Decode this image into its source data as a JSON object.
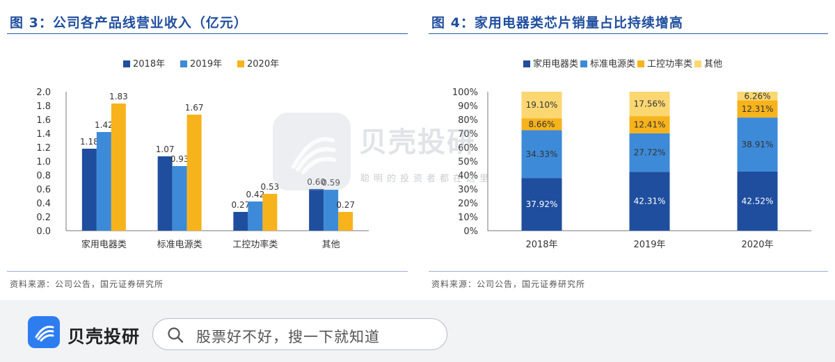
{
  "left": {
    "title": "图 3：公司各产品线营业收入（亿元）",
    "source": "资料来源：公司公告，国元证券研究所",
    "chart_data": {
      "type": "bar",
      "categories": [
        "家用电器类",
        "标准电源类",
        "工控功率类",
        "其他"
      ],
      "series": [
        {
          "name": "2018年",
          "color": "#1f4e9e",
          "values": [
            1.18,
            1.07,
            0.27,
            0.6
          ],
          "labels": [
            "1.18",
            "1.07",
            "0.27",
            "0.60"
          ]
        },
        {
          "name": "2019年",
          "color": "#3d8ad8",
          "values": [
            1.42,
            0.93,
            0.42,
            0.59
          ],
          "labels": [
            "1.42",
            "0.93",
            "0.42",
            "0.59"
          ]
        },
        {
          "name": "2020年",
          "color": "#f7b31c",
          "values": [
            1.83,
            1.67,
            0.53,
            0.27
          ],
          "labels": [
            "1.83",
            "1.67",
            "0.53",
            "0.27"
          ]
        }
      ],
      "ylim": [
        0,
        2.0
      ],
      "yticks": [
        "0.0",
        "0.2",
        "0.4",
        "0.6",
        "0.8",
        "1.0",
        "1.2",
        "1.4",
        "1.6",
        "1.8",
        "2.0"
      ],
      "legend": "top-center",
      "grid": false
    }
  },
  "right": {
    "title": "图 4：家用电器类芯片销量占比持续增高",
    "source": "资料来源：公司公告，国元证券研究所",
    "chart_data": {
      "type": "bar",
      "stacked": true,
      "categories": [
        "2018年",
        "2019年",
        "2020年"
      ],
      "series": [
        {
          "name": "家用电器类",
          "color": "#1f4e9e",
          "values": [
            37.92,
            42.31,
            42.52
          ],
          "labels": [
            "37.92%",
            "42.31%",
            "42.52%"
          ]
        },
        {
          "name": "标准电源类",
          "color": "#3d8ad8",
          "values": [
            34.33,
            27.72,
            38.91
          ],
          "labels": [
            "34.33%",
            "27.72%",
            "38.91%"
          ]
        },
        {
          "name": "工控功率类",
          "color": "#f7b31c",
          "values": [
            8.66,
            12.41,
            12.31
          ],
          "labels": [
            "8.66%",
            "12.41%",
            "12.31%"
          ]
        },
        {
          "name": "其他",
          "color": "#fbd772",
          "values": [
            19.1,
            17.56,
            6.26
          ],
          "labels": [
            "19.10%",
            "17.56%",
            "6.26%"
          ]
        }
      ],
      "ylim": [
        0,
        100
      ],
      "yticks": [
        "0%",
        "10%",
        "20%",
        "30%",
        "40%",
        "50%",
        "60%",
        "70%",
        "80%",
        "90%",
        "100%"
      ],
      "legend": "top-center",
      "grid": false
    }
  },
  "watermark": {
    "text": "贝壳投研",
    "subtext": "聪明的投资者都在这里"
  },
  "bottom_bar": {
    "brand": "贝壳投研",
    "search_placeholder": "股票好不好，搜一下就知道",
    "brand_color": "#2d7df0",
    "icons": {
      "logo": "shell-logo-icon",
      "search": "search-icon"
    }
  }
}
